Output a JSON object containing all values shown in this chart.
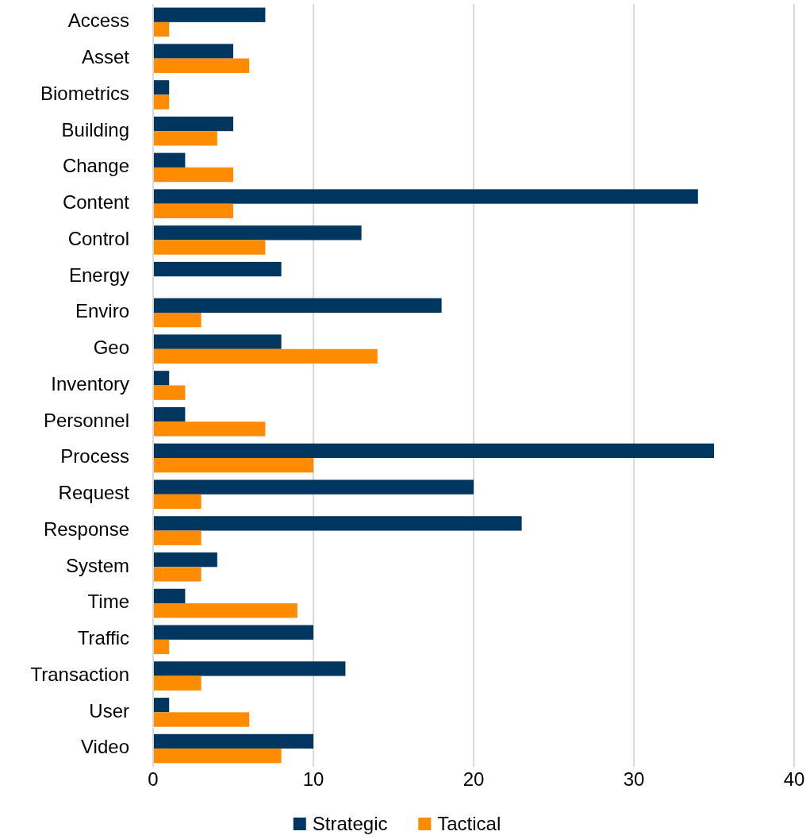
{
  "chart_data": {
    "type": "bar",
    "orientation": "horizontal",
    "categories": [
      "Access",
      "Asset",
      "Biometrics",
      "Building",
      "Change",
      "Content",
      "Control",
      "Energy",
      "Enviro",
      "Geo",
      "Inventory",
      "Personnel",
      "Process",
      "Request",
      "Response",
      "System",
      "Time",
      "Traffic",
      "Transaction",
      "User",
      "Video"
    ],
    "series": [
      {
        "name": "Strategic",
        "color": "#003660",
        "values": [
          7,
          5,
          1,
          5,
          2,
          34,
          13,
          8,
          18,
          8,
          1,
          2,
          35,
          20,
          23,
          4,
          2,
          10,
          12,
          1,
          10
        ]
      },
      {
        "name": "Tactical",
        "color": "#ff8c00",
        "values": [
          1,
          6,
          1,
          4,
          5,
          5,
          7,
          0,
          3,
          14,
          2,
          7,
          10,
          3,
          3,
          3,
          9,
          1,
          3,
          6,
          8
        ]
      }
    ],
    "xlim": [
      0,
      40
    ],
    "xticks": [
      0,
      10,
      20,
      30,
      40
    ],
    "grid": "x",
    "legend": "bottom"
  }
}
